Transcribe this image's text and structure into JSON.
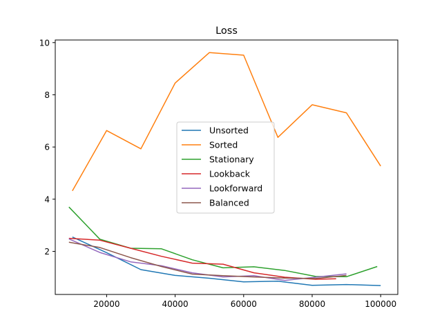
{
  "chart_data": {
    "type": "line",
    "title": "Loss",
    "xlabel": "",
    "ylabel": "",
    "xlim": [
      5000,
      105000
    ],
    "ylim": [
      0.35,
      10.1
    ],
    "xticks": [
      20000,
      40000,
      60000,
      80000,
      100000
    ],
    "yticks": [
      2,
      4,
      6,
      8,
      10
    ],
    "grid": false,
    "legend_position": "center",
    "series": [
      {
        "name": "Unsorted",
        "color": "#1f77b4",
        "x": [
          10000,
          20000,
          30000,
          40000,
          50000,
          60000,
          70000,
          80000,
          90000,
          100000
        ],
        "y": [
          2.55,
          1.95,
          1.3,
          1.08,
          0.97,
          0.83,
          0.86,
          0.7,
          0.73,
          0.69
        ]
      },
      {
        "name": "Sorted",
        "color": "#ff7f0e",
        "x": [
          10000,
          20000,
          30000,
          40000,
          50000,
          60000,
          70000,
          80000,
          90000,
          100000
        ],
        "y": [
          4.32,
          6.63,
          5.93,
          8.45,
          9.62,
          9.52,
          6.37,
          7.62,
          7.31,
          5.27
        ]
      },
      {
        "name": "Stationary",
        "color": "#2ca02c",
        "x": [
          9000,
          18000,
          27000,
          36000,
          45000,
          54000,
          63000,
          72000,
          81000,
          90000,
          99000
        ],
        "y": [
          3.7,
          2.47,
          2.12,
          2.1,
          1.68,
          1.37,
          1.41,
          1.27,
          1.04,
          1.03,
          1.42
        ]
      },
      {
        "name": "Lookback",
        "color": "#d62728",
        "x": [
          9000,
          18000,
          27000,
          36000,
          45000,
          54000,
          63000,
          72000,
          81000,
          87000
        ],
        "y": [
          2.5,
          2.43,
          2.12,
          1.81,
          1.55,
          1.51,
          1.18,
          1.01,
          0.93,
          0.95
        ]
      },
      {
        "name": "Lookforward",
        "color": "#9467bd",
        "x": [
          9000,
          18000,
          27000,
          36000,
          45000,
          54000,
          63000,
          72000,
          81000,
          90000
        ],
        "y": [
          2.48,
          1.96,
          1.6,
          1.45,
          1.18,
          1.02,
          1.07,
          0.89,
          1.01,
          1.14
        ]
      },
      {
        "name": "Balanced",
        "color": "#8c564b",
        "x": [
          9000,
          18000,
          27000,
          36000,
          45000,
          54000,
          63000,
          72000,
          81000,
          90000
        ],
        "y": [
          2.35,
          2.15,
          1.76,
          1.42,
          1.13,
          1.07,
          1.02,
          0.98,
          0.96,
          1.08
        ]
      }
    ]
  }
}
